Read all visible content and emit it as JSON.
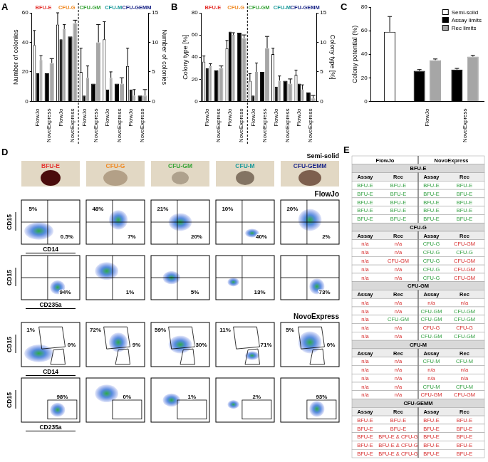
{
  "chart_data": [
    {
      "panel": "A",
      "type": "bar",
      "y_label": "Number of colonies",
      "y2_label": "Number of colonies",
      "categories": [
        "FlowJo",
        "NovoExpress",
        "FlowJo",
        "NovoExpress",
        "FlowJo",
        "NovoExpress",
        "FlowJo",
        "NovoExpress",
        "FlowJo",
        "NovoExpress"
      ],
      "groups": [
        {
          "name": "BFU-E",
          "color": "#e53935"
        },
        {
          "name": "CFU-G",
          "color": "#f08a24"
        },
        {
          "name": "CFU-GM",
          "color": "#3aa53a"
        },
        {
          "name": "CFU-M",
          "color": "#1a9a9a"
        },
        {
          "name": "CFU-GEMM",
          "color": "#1f2a8a"
        }
      ],
      "ylim": [
        0,
        60
      ],
      "yticks": [
        0,
        20,
        40,
        60
      ],
      "y2lim": [
        0,
        15
      ],
      "y2ticks": [
        0,
        5,
        10,
        15
      ],
      "grid": false,
      "series": [
        {
          "name": "Semi-solid",
          "color": "#ffffff",
          "values": [
            38,
            null,
            52,
            null,
            null,
            null,
            null,
            null,
            null,
            null
          ],
          "errors": [
            10,
            null,
            8,
            null,
            null,
            null,
            null,
            null,
            null,
            null
          ]
        },
        {
          "name": "Assay limits",
          "color": "#000000",
          "values": [
            19,
            19,
            42,
            44,
            null,
            null,
            null,
            null,
            null,
            null
          ],
          "errors": [
            null,
            null,
            null,
            null,
            null,
            null,
            null,
            null,
            null,
            null
          ]
        },
        {
          "name": "Rec limits",
          "color": "#a6a6a6",
          "values": [
            28,
            26,
            49,
            53,
            null,
            null,
            null,
            null,
            null,
            null
          ],
          "errors": [
            3,
            3,
            3,
            2,
            null,
            null,
            null,
            null,
            null,
            null
          ]
        },
        {
          "name": "Semi-solid",
          "color": "#ffffff",
          "axis": "y2",
          "values": [
            null,
            null,
            null,
            null,
            5,
            null,
            10.5,
            null,
            6,
            null
          ],
          "errors": [
            null,
            null,
            null,
            null,
            4,
            null,
            3,
            null,
            3,
            null
          ]
        },
        {
          "name": "Assay limits",
          "color": "#000000",
          "axis": "y2",
          "values": [
            null,
            null,
            null,
            null,
            1,
            3,
            2,
            3,
            2,
            1
          ],
          "errors": [
            null,
            null,
            null,
            null,
            null,
            null,
            null,
            null,
            null,
            null
          ]
        },
        {
          "name": "Rec limits",
          "color": "#a6a6a6",
          "axis": "y2",
          "values": [
            null,
            null,
            null,
            null,
            4,
            10,
            4,
            3,
            1,
            1
          ],
          "errors": [
            null,
            null,
            null,
            null,
            2,
            3,
            1,
            1,
            1,
            1
          ]
        }
      ]
    },
    {
      "panel": "B",
      "type": "bar",
      "y_label": "Colony type [%]",
      "y2_label": "Colony type [%]",
      "categories": [
        "FlowJo",
        "NovoExpress",
        "FlowJo",
        "NovoExpress",
        "FlowJo",
        "NovoExpress",
        "FlowJo",
        "NovoExpress",
        "FlowJo",
        "NovoExpress"
      ],
      "groups": [
        {
          "name": "BFU-E",
          "color": "#e53935"
        },
        {
          "name": "CFU-G",
          "color": "#f08a24"
        },
        {
          "name": "CFU-GM",
          "color": "#3aa53a"
        },
        {
          "name": "CFU-M",
          "color": "#1a9a9a"
        },
        {
          "name": "CFU-GEMM",
          "color": "#1f2a8a"
        }
      ],
      "ylim": [
        0,
        80
      ],
      "yticks": [
        0,
        20,
        40,
        60,
        80
      ],
      "y2lim": [
        0,
        15
      ],
      "y2ticks": [
        0,
        5,
        10,
        15
      ],
      "grid": false,
      "series": [
        {
          "name": "Semi-solid",
          "color": "#ffffff",
          "values": [
            36,
            null,
            48,
            null,
            null,
            null,
            null,
            null,
            null,
            null
          ],
          "errors": [
            5,
            null,
            7,
            null,
            null,
            null,
            null,
            null,
            null,
            null
          ]
        },
        {
          "name": "Assay limits",
          "color": "#000000",
          "values": [
            30,
            28,
            63,
            62,
            null,
            null,
            null,
            null,
            null,
            null
          ],
          "errors": [
            null,
            null,
            null,
            null,
            null,
            null,
            null,
            null,
            null,
            null
          ]
        },
        {
          "name": "Rec limits",
          "color": "#a6a6a6",
          "values": [
            32,
            30,
            60,
            57,
            null,
            null,
            null,
            null,
            null,
            null
          ],
          "errors": [
            2,
            2,
            2,
            3,
            null,
            null,
            null,
            null,
            null,
            null
          ]
        },
        {
          "name": "Semi-solid",
          "color": "#ffffff",
          "axis": "y2",
          "values": [
            null,
            null,
            null,
            null,
            3.5,
            null,
            8,
            null,
            4.5,
            null
          ],
          "errors": [
            null,
            null,
            null,
            null,
            1.2,
            null,
            1,
            null,
            0.8,
            null
          ]
        },
        {
          "name": "Assay limits",
          "color": "#000000",
          "axis": "y2",
          "values": [
            null,
            null,
            null,
            null,
            1,
            5,
            2.5,
            3.5,
            3,
            1.5
          ],
          "errors": [
            null,
            null,
            null,
            null,
            null,
            null,
            null,
            null,
            null,
            null
          ]
        },
        {
          "name": "Rec limits",
          "color": "#a6a6a6",
          "axis": "y2",
          "values": [
            null,
            null,
            null,
            null,
            5,
            9,
            3.5,
            3,
            2,
            0.5
          ],
          "errors": [
            null,
            null,
            null,
            null,
            1.5,
            2,
            0.8,
            0.8,
            0.8,
            0.5
          ]
        }
      ]
    },
    {
      "panel": "C",
      "type": "bar",
      "y_label": "Colony potential (%)",
      "categories": [
        null,
        "FlowJo",
        "NovoExpress"
      ],
      "ylim": [
        0,
        80
      ],
      "yticks": [
        0,
        20,
        40,
        60,
        80
      ],
      "grid": false,
      "legend": "upper right",
      "series": [
        {
          "name": "Semi-solid",
          "color": "#ffffff",
          "values": [
            59,
            null,
            null
          ],
          "errors": [
            13,
            null,
            null
          ]
        },
        {
          "name": "Assay limits",
          "color": "#000000",
          "values": [
            null,
            26,
            27
          ],
          "errors": [
            null,
            1,
            1
          ]
        },
        {
          "name": "Rec limits",
          "color": "#a6a6a6",
          "values": [
            null,
            35,
            38
          ],
          "errors": [
            null,
            1,
            1
          ]
        }
      ]
    }
  ],
  "panel_D": {
    "letter": "D",
    "semi_solid_label": "Semi-solid",
    "colonies": [
      {
        "name": "BFU-E",
        "color": "#e53935"
      },
      {
        "name": "CFU-G",
        "color": "#f08a24"
      },
      {
        "name": "CFU-GM",
        "color": "#3aa53a"
      },
      {
        "name": "CFU-M",
        "color": "#1a9a9a"
      },
      {
        "name": "CFU-GEMM",
        "color": "#1f2a8a"
      }
    ],
    "sections": [
      {
        "name": "FlowJo",
        "rows": [
          {
            "x_label": "CD14",
            "y_label": "CD15",
            "labels": [
              [
                "5%",
                "0.5%"
              ],
              [
                "48%",
                "7%"
              ],
              [
                "21%",
                "20%"
              ],
              [
                "10%",
                "40%"
              ],
              [
                "20%",
                "2%"
              ]
            ]
          },
          {
            "x_label": "CD235a",
            "y_label": "CD15",
            "labels": [
              [
                "94%"
              ],
              [
                "1%"
              ],
              [
                "5%"
              ],
              [
                "13%"
              ],
              [
                "73%"
              ]
            ]
          }
        ]
      },
      {
        "name": "NovoExpress",
        "rows": [
          {
            "x_label": "CD14",
            "y_label": "CD15",
            "labels": [
              [
                "1%",
                "0%"
              ],
              [
                "72%",
                "9%"
              ],
              [
                "59%",
                "30%"
              ],
              [
                "11%",
                "71%"
              ],
              [
                "5%",
                "0%"
              ]
            ]
          },
          {
            "x_label": "CD235a",
            "y_label": "CD15",
            "labels": [
              [
                "98%"
              ],
              [
                "0%"
              ],
              [
                "1%"
              ],
              [
                "2%"
              ],
              [
                "93%"
              ]
            ]
          }
        ]
      }
    ]
  },
  "panel_E": {
    "letter": "E",
    "tools": [
      "FlowJo",
      "NovoExpress"
    ],
    "columns": [
      "Assay",
      "Rec",
      "Assay",
      "Rec"
    ],
    "sections": [
      {
        "name": "BFU-E",
        "rows": [
          [
            "BFU-E",
            "BFU-E",
            "BFU-E",
            "BFU-E"
          ],
          [
            "BFU-E",
            "BFU-E",
            "BFU-E",
            "BFU-E"
          ],
          [
            "BFU-E",
            "BFU-E",
            "BFU-E",
            "BFU-E"
          ],
          [
            "BFU-E",
            "BFU-E",
            "BFU-E",
            "BFU-E"
          ],
          [
            "BFU-E",
            "BFU-E",
            "BFU-E",
            "BFU-E"
          ]
        ]
      },
      {
        "name": "CFU-G",
        "rows": [
          [
            "n/a",
            "n/a",
            "CFU-G",
            "CFU-GM"
          ],
          [
            "n/a",
            "n/a",
            "CFU-G",
            "CFU-G"
          ],
          [
            "n/a",
            "CFU-GM",
            "CFU-G",
            "CFU-GM"
          ],
          [
            "n/a",
            "n/a",
            "CFU-G",
            "CFU-GM"
          ],
          [
            "n/a",
            "n/a",
            "CFU-G",
            "CFU-GM"
          ]
        ]
      },
      {
        "name": "CFU-GM",
        "rows": [
          [
            "n/a",
            "n/a",
            "n/a",
            "n/a"
          ],
          [
            "n/a",
            "n/a",
            "CFU-GM",
            "CFU-GM"
          ],
          [
            "n/a",
            "CFU-GM",
            "CFU-GM",
            "CFU-GM"
          ],
          [
            "n/a",
            "n/a",
            "CFU-G",
            "CFU-G"
          ],
          [
            "n/a",
            "n/a",
            "CFU-GM",
            "CFU-GM"
          ]
        ]
      },
      {
        "name": "CFU-M",
        "rows": [
          [
            "n/a",
            "n/a",
            "CFU-M",
            "CFU-M"
          ],
          [
            "n/a",
            "n/a",
            "n/a",
            "n/a"
          ],
          [
            "n/a",
            "n/a",
            "n/a",
            "n/a"
          ],
          [
            "n/a",
            "n/a",
            "CFU-M",
            "CFU-M"
          ],
          [
            "n/a",
            "n/a",
            "CFU-GM",
            "CFU-GM"
          ]
        ]
      },
      {
        "name": "CFU-GEMM",
        "rows": [
          [
            "BFU-E",
            "BFU-E",
            "BFU-E",
            "BFU-E"
          ],
          [
            "BFU-E",
            "BFU-E",
            "BFU-E",
            "BFU-E"
          ],
          [
            "BFU-E",
            "BFU-E & CFU-G",
            "BFU-E",
            "BFU-E"
          ],
          [
            "BFU-E",
            "BFU-E & CFU-G",
            "BFU-E",
            "BFU-E"
          ],
          [
            "BFU-E",
            "BFU-E & CFU-G",
            "BFU-E",
            "BFU-E"
          ]
        ]
      }
    ]
  }
}
